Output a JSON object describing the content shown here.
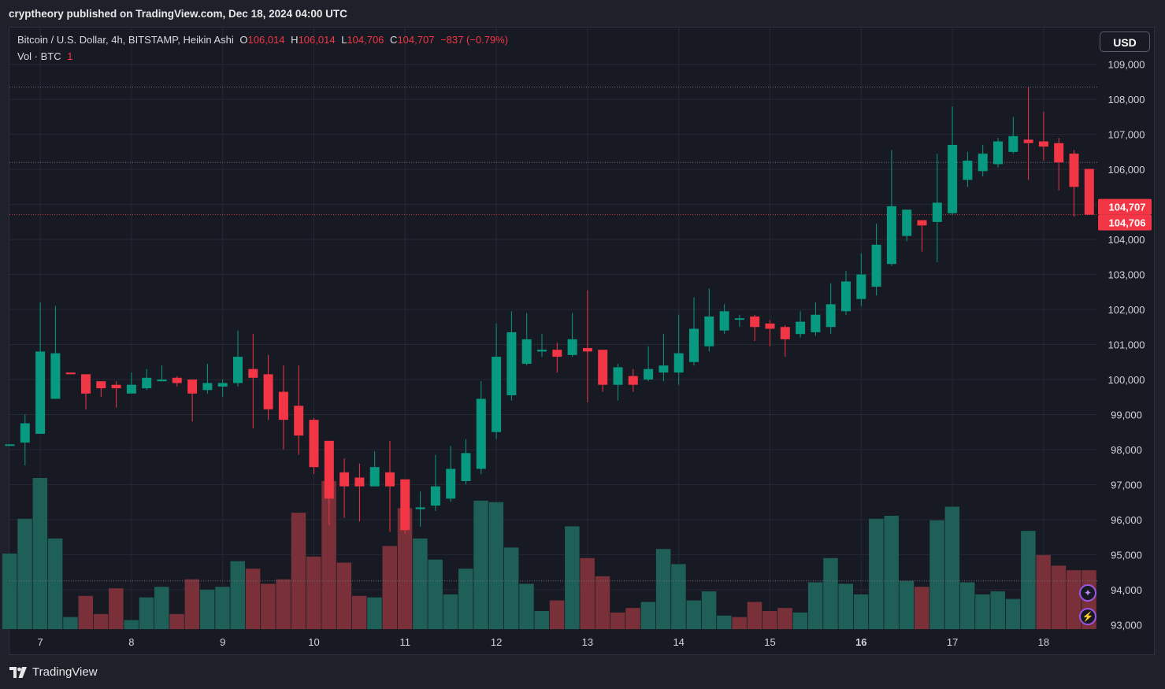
{
  "header": {
    "publisher_text": "cryptheory published on TradingView.com, Dec 18, 2024 04:00 UTC"
  },
  "legend": {
    "symbol": "Bitcoin / U.S. Dollar, 4h, BITSTAMP, Heikin Ashi",
    "open_label": "O",
    "open_value": "106,014",
    "high_label": "H",
    "high_value": "106,014",
    "low_label": "L",
    "low_value": "104,706",
    "close_label": "C",
    "close_value": "104,707",
    "change": "−837 (−0.79%)",
    "volume_label": "Vol · BTC",
    "volume_value": "1"
  },
  "currency_button": "USD",
  "brand": {
    "name": "TradingView",
    "icon": "tradingview-logo-icon"
  },
  "buttons": [
    {
      "icon": "star-icon"
    },
    {
      "icon": "lightning-icon"
    }
  ],
  "colors": {
    "up": "#089981",
    "down": "#f23645",
    "up_volume": "#1e5f58",
    "down_volume": "#7a3038",
    "background": "#171923",
    "grid": "#262936",
    "axis_text": "#d1d4dc"
  },
  "chart_data": {
    "type": "candlestick",
    "style": "Heikin Ashi",
    "symbol": "Bitcoin / U.S. Dollar",
    "interval": "4h",
    "exchange": "BITSTAMP",
    "y_axis": {
      "ticks": [
        "93,000",
        "94,000",
        "95,000",
        "96,000",
        "97,000",
        "98,000",
        "99,000",
        "100,000",
        "101,000",
        "102,000",
        "103,000",
        "104,000",
        "105,000",
        "106,000",
        "107,000",
        "108,000",
        "109,000"
      ],
      "range": [
        92850,
        110050
      ],
      "currency": "USD"
    },
    "x_axis": {
      "ticks": [
        "7",
        "8",
        "9",
        "10",
        "11",
        "12",
        "13",
        "14",
        "15",
        "16",
        "17",
        "18"
      ],
      "bars_per_day": 6,
      "first_bar_day_offset": -4,
      "grid": true
    },
    "price_labels": [
      "104,707",
      "104,706"
    ],
    "reference_lines": [
      108350,
      106200,
      104707,
      94250
    ],
    "candles": [
      {
        "o": 98150,
        "h": 98150,
        "l": 98150,
        "c": 98150
      },
      {
        "o": 98200,
        "h": 99000,
        "l": 97550,
        "c": 98750
      },
      {
        "o": 98450,
        "h": 102200,
        "l": 98450,
        "c": 100800
      },
      {
        "o": 99450,
        "h": 102100,
        "l": 99450,
        "c": 100750
      },
      {
        "o": 100200,
        "h": 100200,
        "l": 100150,
        "c": 100150
      },
      {
        "o": 100150,
        "h": 100150,
        "l": 99150,
        "c": 99600
      },
      {
        "o": 99950,
        "h": 99950,
        "l": 99500,
        "c": 99750
      },
      {
        "o": 99850,
        "h": 99950,
        "l": 99200,
        "c": 99750
      },
      {
        "o": 99600,
        "h": 100200,
        "l": 99600,
        "c": 99850
      },
      {
        "o": 99750,
        "h": 100300,
        "l": 99700,
        "c": 100050
      },
      {
        "o": 99950,
        "h": 100400,
        "l": 99950,
        "c": 100000
      },
      {
        "o": 100050,
        "h": 100100,
        "l": 99800,
        "c": 99900
      },
      {
        "o": 100000,
        "h": 100000,
        "l": 98800,
        "c": 99600
      },
      {
        "o": 99700,
        "h": 100450,
        "l": 99600,
        "c": 99900
      },
      {
        "o": 99800,
        "h": 100000,
        "l": 99500,
        "c": 99900
      },
      {
        "o": 99900,
        "h": 101400,
        "l": 99800,
        "c": 100650
      },
      {
        "o": 100300,
        "h": 101300,
        "l": 98600,
        "c": 100050
      },
      {
        "o": 100150,
        "h": 100700,
        "l": 98850,
        "c": 99150
      },
      {
        "o": 99650,
        "h": 100400,
        "l": 98000,
        "c": 98850
      },
      {
        "o": 99250,
        "h": 100400,
        "l": 97850,
        "c": 98400
      },
      {
        "o": 98850,
        "h": 98900,
        "l": 97300,
        "c": 97500
      },
      {
        "o": 98250,
        "h": 98250,
        "l": 95850,
        "c": 96600
      },
      {
        "o": 97350,
        "h": 97750,
        "l": 96050,
        "c": 96950
      },
      {
        "o": 97200,
        "h": 97600,
        "l": 95950,
        "c": 96950
      },
      {
        "o": 96950,
        "h": 97950,
        "l": 96950,
        "c": 97500
      },
      {
        "o": 97350,
        "h": 98250,
        "l": 95650,
        "c": 96950
      },
      {
        "o": 97150,
        "h": 97150,
        "l": 95600,
        "c": 95700
      },
      {
        "o": 96300,
        "h": 96800,
        "l": 95800,
        "c": 96350
      },
      {
        "o": 96400,
        "h": 97850,
        "l": 96250,
        "c": 96950
      },
      {
        "o": 96600,
        "h": 98100,
        "l": 96500,
        "c": 97450
      },
      {
        "o": 97100,
        "h": 98300,
        "l": 97000,
        "c": 97900
      },
      {
        "o": 97450,
        "h": 99950,
        "l": 97300,
        "c": 99450
      },
      {
        "o": 98500,
        "h": 101600,
        "l": 98300,
        "c": 100650
      },
      {
        "o": 99550,
        "h": 101950,
        "l": 99400,
        "c": 101350
      },
      {
        "o": 100450,
        "h": 101900,
        "l": 100400,
        "c": 101150
      },
      {
        "o": 100800,
        "h": 101300,
        "l": 100650,
        "c": 100850
      },
      {
        "o": 100850,
        "h": 101050,
        "l": 100200,
        "c": 100650
      },
      {
        "o": 100700,
        "h": 101900,
        "l": 100650,
        "c": 101150
      },
      {
        "o": 100900,
        "h": 102550,
        "l": 99350,
        "c": 100800
      },
      {
        "o": 100850,
        "h": 100850,
        "l": 99650,
        "c": 99850
      },
      {
        "o": 99850,
        "h": 100450,
        "l": 99400,
        "c": 100350
      },
      {
        "o": 100100,
        "h": 100300,
        "l": 99650,
        "c": 99850
      },
      {
        "o": 100000,
        "h": 100950,
        "l": 99950,
        "c": 100300
      },
      {
        "o": 100200,
        "h": 101300,
        "l": 99950,
        "c": 100400
      },
      {
        "o": 100200,
        "h": 101850,
        "l": 99850,
        "c": 100750
      },
      {
        "o": 100500,
        "h": 102350,
        "l": 100400,
        "c": 101450
      },
      {
        "o": 100950,
        "h": 102600,
        "l": 100800,
        "c": 101800
      },
      {
        "o": 101400,
        "h": 102150,
        "l": 101300,
        "c": 101950
      },
      {
        "o": 101750,
        "h": 101850,
        "l": 101500,
        "c": 101750
      },
      {
        "o": 101800,
        "h": 101850,
        "l": 101100,
        "c": 101500
      },
      {
        "o": 101600,
        "h": 101700,
        "l": 100950,
        "c": 101450
      },
      {
        "o": 101500,
        "h": 101550,
        "l": 100650,
        "c": 101150
      },
      {
        "o": 101300,
        "h": 101950,
        "l": 101200,
        "c": 101650
      },
      {
        "o": 101350,
        "h": 102200,
        "l": 101250,
        "c": 101850
      },
      {
        "o": 101500,
        "h": 102750,
        "l": 101300,
        "c": 102150
      },
      {
        "o": 101950,
        "h": 103100,
        "l": 101850,
        "c": 102800
      },
      {
        "o": 102300,
        "h": 103600,
        "l": 102100,
        "c": 103000
      },
      {
        "o": 102650,
        "h": 104450,
        "l": 102400,
        "c": 103850
      },
      {
        "o": 103300,
        "h": 106550,
        "l": 103250,
        "c": 104950
      },
      {
        "o": 104100,
        "h": 104850,
        "l": 103950,
        "c": 104850
      },
      {
        "o": 104550,
        "h": 104550,
        "l": 103650,
        "c": 104400
      },
      {
        "o": 104500,
        "h": 106450,
        "l": 103350,
        "c": 105050
      },
      {
        "o": 104750,
        "h": 107800,
        "l": 104700,
        "c": 106700
      },
      {
        "o": 105700,
        "h": 106500,
        "l": 105500,
        "c": 106250
      },
      {
        "o": 105950,
        "h": 106700,
        "l": 105800,
        "c": 106450
      },
      {
        "o": 106150,
        "h": 106900,
        "l": 106050,
        "c": 106800
      },
      {
        "o": 106500,
        "h": 107500,
        "l": 106450,
        "c": 106950
      },
      {
        "o": 106850,
        "h": 108350,
        "l": 105700,
        "c": 106750
      },
      {
        "o": 106800,
        "h": 107650,
        "l": 106250,
        "c": 106650
      },
      {
        "o": 106750,
        "h": 106900,
        "l": 105400,
        "c": 106200
      },
      {
        "o": 106450,
        "h": 106550,
        "l": 104650,
        "c": 105500
      },
      {
        "o": 106014,
        "h": 106014,
        "l": 104706,
        "c": 104707
      }
    ],
    "volume": [
      {
        "v": 0.5,
        "up": true
      },
      {
        "v": 0.73,
        "up": true
      },
      {
        "v": 1.0,
        "up": true
      },
      {
        "v": 0.6,
        "up": true
      },
      {
        "v": 0.08,
        "up": true
      },
      {
        "v": 0.22,
        "up": false
      },
      {
        "v": 0.1,
        "up": false
      },
      {
        "v": 0.27,
        "up": false
      },
      {
        "v": 0.06,
        "up": true
      },
      {
        "v": 0.21,
        "up": true
      },
      {
        "v": 0.28,
        "up": true
      },
      {
        "v": 0.1,
        "up": false
      },
      {
        "v": 0.33,
        "up": false
      },
      {
        "v": 0.26,
        "up": true
      },
      {
        "v": 0.28,
        "up": true
      },
      {
        "v": 0.45,
        "up": true
      },
      {
        "v": 0.4,
        "up": false
      },
      {
        "v": 0.3,
        "up": false
      },
      {
        "v": 0.33,
        "up": false
      },
      {
        "v": 0.77,
        "up": false
      },
      {
        "v": 0.48,
        "up": false
      },
      {
        "v": 0.98,
        "up": false
      },
      {
        "v": 0.44,
        "up": false
      },
      {
        "v": 0.22,
        "up": false
      },
      {
        "v": 0.21,
        "up": true
      },
      {
        "v": 0.55,
        "up": false
      },
      {
        "v": 0.8,
        "up": false
      },
      {
        "v": 0.6,
        "up": true
      },
      {
        "v": 0.46,
        "up": true
      },
      {
        "v": 0.23,
        "up": true
      },
      {
        "v": 0.4,
        "up": true
      },
      {
        "v": 0.85,
        "up": true
      },
      {
        "v": 0.84,
        "up": true
      },
      {
        "v": 0.54,
        "up": true
      },
      {
        "v": 0.3,
        "up": true
      },
      {
        "v": 0.12,
        "up": true
      },
      {
        "v": 0.19,
        "up": false
      },
      {
        "v": 0.68,
        "up": true
      },
      {
        "v": 0.47,
        "up": false
      },
      {
        "v": 0.35,
        "up": false
      },
      {
        "v": 0.11,
        "up": false
      },
      {
        "v": 0.14,
        "up": false
      },
      {
        "v": 0.18,
        "up": true
      },
      {
        "v": 0.53,
        "up": true
      },
      {
        "v": 0.43,
        "up": true
      },
      {
        "v": 0.19,
        "up": true
      },
      {
        "v": 0.25,
        "up": true
      },
      {
        "v": 0.09,
        "up": true
      },
      {
        "v": 0.08,
        "up": false
      },
      {
        "v": 0.18,
        "up": false
      },
      {
        "v": 0.12,
        "up": false
      },
      {
        "v": 0.14,
        "up": false
      },
      {
        "v": 0.11,
        "up": true
      },
      {
        "v": 0.31,
        "up": true
      },
      {
        "v": 0.47,
        "up": true
      },
      {
        "v": 0.3,
        "up": true
      },
      {
        "v": 0.23,
        "up": true
      },
      {
        "v": 0.73,
        "up": true
      },
      {
        "v": 0.75,
        "up": true
      },
      {
        "v": 0.32,
        "up": true
      },
      {
        "v": 0.28,
        "up": false
      },
      {
        "v": 0.72,
        "up": true
      },
      {
        "v": 0.81,
        "up": true
      },
      {
        "v": 0.31,
        "up": true
      },
      {
        "v": 0.23,
        "up": true
      },
      {
        "v": 0.25,
        "up": true
      },
      {
        "v": 0.2,
        "up": true
      },
      {
        "v": 0.65,
        "up": true
      },
      {
        "v": 0.49,
        "up": false
      },
      {
        "v": 0.42,
        "up": false
      },
      {
        "v": 0.39,
        "up": false
      },
      {
        "v": 0.39,
        "up": false
      }
    ]
  }
}
